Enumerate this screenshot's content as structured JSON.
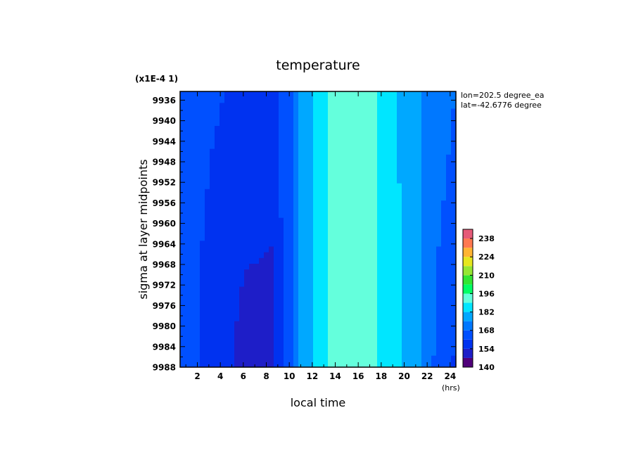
{
  "chart_data": {
    "type": "heatmap",
    "title": "temperature",
    "xlabel": "local time",
    "ylabel": "sigma at layer midpoints",
    "x_unit": "(hrs)",
    "y_scale_note": "(x1E-4 1)",
    "annotations": [
      "lon=202.5 degree_ea",
      "lat=-42.6776 degree"
    ],
    "x_ticks": [
      2,
      4,
      6,
      8,
      10,
      12,
      14,
      16,
      18,
      20,
      22,
      24
    ],
    "y_ticks": [
      9936,
      9940,
      9944,
      9948,
      9952,
      9956,
      9960,
      9964,
      9968,
      9972,
      9976,
      9980,
      9984,
      9988
    ],
    "xlim": [
      0.5,
      24.5
    ],
    "ylim": [
      9988,
      9934.3
    ],
    "colorbar": {
      "ticks": [
        140,
        154,
        168,
        182,
        196,
        210,
        224,
        238
      ],
      "range": [
        140,
        245
      ],
      "levels": [
        140,
        147,
        154,
        161,
        168,
        175,
        182,
        189,
        196,
        203,
        210,
        217,
        224,
        231,
        238,
        245
      ],
      "colors": [
        "#50007a",
        "#1e1ec8",
        "#0032f0",
        "#0050ff",
        "#0078ff",
        "#00a8ff",
        "#00e6ff",
        "#64ffdc",
        "#00ff64",
        "#32e632",
        "#96e632",
        "#e6e61e",
        "#ffb432",
        "#ff7850",
        "#e65a78"
      ]
    },
    "series": [
      {
        "local_time": 0.5,
        "values_top_to_bottom": [
          165,
          165,
          165,
          165
        ]
      },
      {
        "local_time": 3.5,
        "values_top_to_bottom": [
          162,
          160,
          158,
          157
        ]
      },
      {
        "local_time": 6.0,
        "values_top_to_bottom": [
          159,
          157,
          154,
          152
        ]
      },
      {
        "local_time": 8.5,
        "values_top_to_bottom": [
          158,
          156,
          153,
          151
        ]
      },
      {
        "local_time": 9.5,
        "values_top_to_bottom": [
          164,
          163,
          162,
          161
        ]
      },
      {
        "local_time": 10.5,
        "values_top_to_bottom": [
          168,
          168,
          168,
          168
        ]
      },
      {
        "local_time": 11.0,
        "values_top_to_bottom": [
          175,
          175,
          175,
          175
        ]
      },
      {
        "local_time": 12.5,
        "values_top_to_bottom": [
          187,
          187,
          187,
          187
        ]
      },
      {
        "local_time": 16.0,
        "values_top_to_bottom": [
          194,
          194,
          194,
          194
        ]
      },
      {
        "local_time": 19.0,
        "values_top_to_bottom": [
          184,
          184,
          185,
          185
        ]
      },
      {
        "local_time": 21.0,
        "values_top_to_bottom": [
          176,
          177,
          178,
          178
        ]
      },
      {
        "local_time": 23.0,
        "values_top_to_bottom": [
          172,
          170,
          167,
          165
        ]
      },
      {
        "local_time": 24.5,
        "values_top_to_bottom": [
          168,
          165,
          162,
          160
        ]
      }
    ]
  }
}
